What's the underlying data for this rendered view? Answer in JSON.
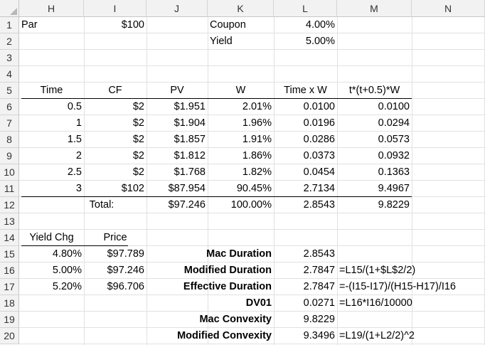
{
  "columns": [
    "H",
    "I",
    "J",
    "K",
    "L",
    "M",
    "N"
  ],
  "rows": [
    "1",
    "2",
    "3",
    "4",
    "5",
    "6",
    "7",
    "8",
    "9",
    "10",
    "11",
    "12",
    "13",
    "14",
    "15",
    "16",
    "17",
    "18",
    "19",
    "20"
  ],
  "top": {
    "par_label": "Par",
    "par_value": "$100",
    "coupon_label": "Coupon",
    "coupon_value": "4.00%",
    "yield_label": "Yield",
    "yield_value": "5.00%"
  },
  "table": {
    "headers": [
      "Time",
      "CF",
      "PV",
      "W",
      "Time x W",
      "t*(t+0.5)*W"
    ],
    "rows": [
      [
        "0.5",
        "$2",
        "$1.951",
        "2.01%",
        "0.0100",
        "0.0100"
      ],
      [
        "1",
        "$2",
        "$1.904",
        "1.96%",
        "0.0196",
        "0.0294"
      ],
      [
        "1.5",
        "$2",
        "$1.857",
        "1.91%",
        "0.0286",
        "0.0573"
      ],
      [
        "2",
        "$2",
        "$1.812",
        "1.86%",
        "0.0373",
        "0.0932"
      ],
      [
        "2.5",
        "$2",
        "$1.768",
        "1.82%",
        "0.0454",
        "0.1363"
      ],
      [
        "3",
        "$102",
        "$87.954",
        "90.45%",
        "2.7134",
        "9.4967"
      ]
    ],
    "total_label": "Total:",
    "totals": [
      "$97.246",
      "100.00%",
      "2.8543",
      "9.8229"
    ]
  },
  "yield_table": {
    "headers": [
      "Yield Chg",
      "Price"
    ],
    "rows": [
      [
        "4.80%",
        "$97.789"
      ],
      [
        "5.00%",
        "$97.246"
      ],
      [
        "5.20%",
        "$96.706"
      ]
    ]
  },
  "metrics": [
    {
      "label": "Mac Duration",
      "value": "2.8543",
      "formula": ""
    },
    {
      "label": "Modified Duration",
      "value": "2.7847",
      "formula": "=L15/(1+$L$2/2)"
    },
    {
      "label": "Effective Duration",
      "value": "2.7847",
      "formula": "=-(I15-I17)/(H15-H17)/I16"
    },
    {
      "label": "DV01",
      "value": "0.0271",
      "formula": "=L16*I16/10000"
    },
    {
      "label": "Mac Convexity",
      "value": "9.8229",
      "formula": ""
    },
    {
      "label": "Modified Convexity",
      "value": "9.3496",
      "formula": "=L19/(1+L2/2)^2"
    }
  ]
}
